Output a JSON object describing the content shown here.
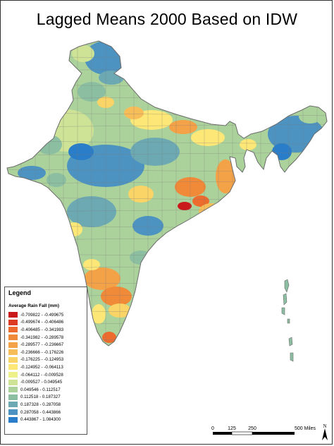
{
  "title": "Lagged Means 2000 Based on IDW",
  "legend": {
    "heading": "Legend",
    "subheading": "Average Rain Fall (mm)",
    "classes": [
      {
        "label": "-0.709822 - -0.499675",
        "color": "#c9191b"
      },
      {
        "label": "-0.499674 - -0.406486",
        "color": "#dd3a22"
      },
      {
        "label": "-0.406485 - -0.341983",
        "color": "#ec6b2d"
      },
      {
        "label": "-0.341982 - -0.289578",
        "color": "#f08a38"
      },
      {
        "label": "-0.289577 - -0.236667",
        "color": "#f4a248"
      },
      {
        "label": "-0.236666 - -0.176226",
        "color": "#f7bd58"
      },
      {
        "label": "-0.176225 - -0.124953",
        "color": "#fad466"
      },
      {
        "label": "-0.124952 - -0.064113",
        "color": "#fde776"
      },
      {
        "label": "-0.064112 - -0.009528",
        "color": "#eef08a"
      },
      {
        "label": "-0.009527 - 0.049545",
        "color": "#cfe396"
      },
      {
        "label": "0.049546 - 0.112517",
        "color": "#acd29c"
      },
      {
        "label": "0.112518 - 0.187327",
        "color": "#8cbfa2"
      },
      {
        "label": "0.187328 - 0.287058",
        "color": "#6da9b3"
      },
      {
        "label": "0.287058 - 0.443866",
        "color": "#4c93c2"
      },
      {
        "label": "0.443867 - 1.084300",
        "color": "#2a7dc8"
      }
    ]
  },
  "scale_bar": {
    "ticks": [
      "0",
      "125",
      "250",
      "500 Miles"
    ]
  },
  "north_arrow": {
    "label": "N",
    "icon": "north-arrow-icon"
  },
  "outline_color": "#6b6b6b",
  "background": "#ffffff"
}
